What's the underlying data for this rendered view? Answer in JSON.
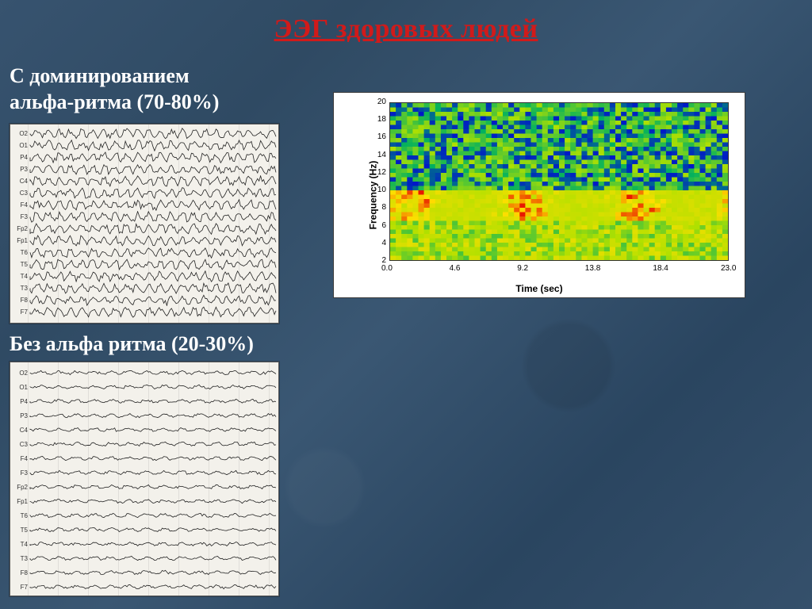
{
  "title": "ЭЭГ здоровых людей",
  "title_color": "#d11a1a",
  "subtitle_color": "#ffffff",
  "section1": {
    "heading_line1": "С доминированием",
    "heading_line2": "альфа-ритма (70-80%)"
  },
  "section2": {
    "heading": "Без альфа ритма (20-30%)"
  },
  "eeg1": {
    "channels": [
      "O2",
      "O1",
      "P4",
      "P3",
      "C4",
      "C3",
      "F4",
      "F3",
      "Fp2",
      "Fp1",
      "T6",
      "T5",
      "T4",
      "T3",
      "F8",
      "F7"
    ],
    "amplitude": 5.5,
    "freq_cycles": 22,
    "bg": "#f3f1eb",
    "line_color": "#222222"
  },
  "eeg2": {
    "channels": [
      "O2",
      "O1",
      "P4",
      "P3",
      "C4",
      "C3",
      "F4",
      "F3",
      "Fp2",
      "Fp1",
      "T6",
      "T5",
      "T4",
      "T3",
      "F8",
      "F7"
    ],
    "amplitude": 2.2,
    "freq_cycles": 14,
    "bg": "#f3f1eb",
    "line_color": "#222222"
  },
  "spectrogram": {
    "type": "heatmap",
    "xlabel": "Time (sec)",
    "ylabel": "Frequency (Hz)",
    "x_ticks": [
      0.0,
      4.6,
      9.2,
      13.8,
      18.4,
      23.0
    ],
    "y_ticks": [
      2,
      4,
      6,
      8,
      10,
      12,
      14,
      16,
      18,
      20
    ],
    "xlim": [
      0,
      23.0
    ],
    "ylim": [
      2,
      20
    ],
    "label_fontsize": 12,
    "tick_fontsize": 10,
    "background_color": "#ffffff",
    "colormap": {
      "low": "#0018c8",
      "mid1": "#00b060",
      "mid2": "#b0e000",
      "high": "#ffde00",
      "peak": "#e81800"
    },
    "resolution": {
      "cols": 60,
      "rows": 36
    },
    "hot_band_hz": [
      7,
      10
    ],
    "noise_seed": 7
  }
}
